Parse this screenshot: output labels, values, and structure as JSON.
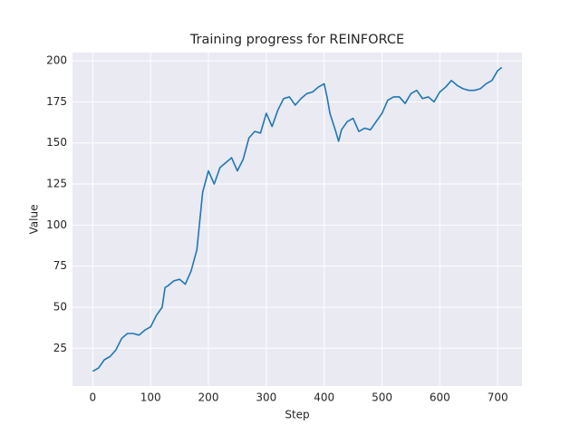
{
  "chart_data": {
    "type": "line",
    "title": "Training progress for REINFORCE",
    "xlabel": "Step",
    "ylabel": "Value",
    "x": [
      0,
      10,
      20,
      30,
      40,
      50,
      60,
      70,
      80,
      90,
      100,
      110,
      120,
      125,
      130,
      140,
      150,
      160,
      170,
      180,
      190,
      200,
      210,
      220,
      230,
      240,
      250,
      260,
      270,
      280,
      290,
      300,
      310,
      320,
      330,
      340,
      350,
      360,
      370,
      380,
      390,
      400,
      405,
      410,
      420,
      425,
      430,
      440,
      450,
      460,
      470,
      480,
      490,
      500,
      510,
      520,
      530,
      540,
      550,
      560,
      570,
      580,
      590,
      600,
      610,
      620,
      630,
      640,
      650,
      660,
      670,
      680,
      690,
      700,
      707
    ],
    "series": [
      {
        "name": "Value",
        "color": "#1f77b4",
        "values": [
          11,
          13,
          18,
          20,
          24,
          31,
          34,
          34,
          33,
          36,
          38,
          45,
          50,
          62,
          63,
          66,
          67,
          64,
          72,
          85,
          120,
          133,
          125,
          135,
          138,
          141,
          133,
          140,
          153,
          157,
          156,
          168,
          160,
          170,
          177,
          178,
          173,
          177,
          180,
          181,
          184,
          186,
          178,
          168,
          157,
          151,
          158,
          163,
          165,
          157,
          159,
          158,
          163,
          168,
          176,
          178,
          178,
          174,
          180,
          182,
          177,
          178,
          175,
          181,
          184,
          188,
          185,
          183,
          182,
          182,
          183,
          186,
          188,
          194,
          196
        ]
      }
    ],
    "xlim": [
      -35,
      742
    ],
    "ylim": [
      2,
      205
    ],
    "xticks": [
      0,
      100,
      200,
      300,
      400,
      500,
      600,
      700
    ],
    "yticks": [
      25,
      50,
      75,
      100,
      125,
      150,
      175,
      200
    ],
    "grid": true
  }
}
